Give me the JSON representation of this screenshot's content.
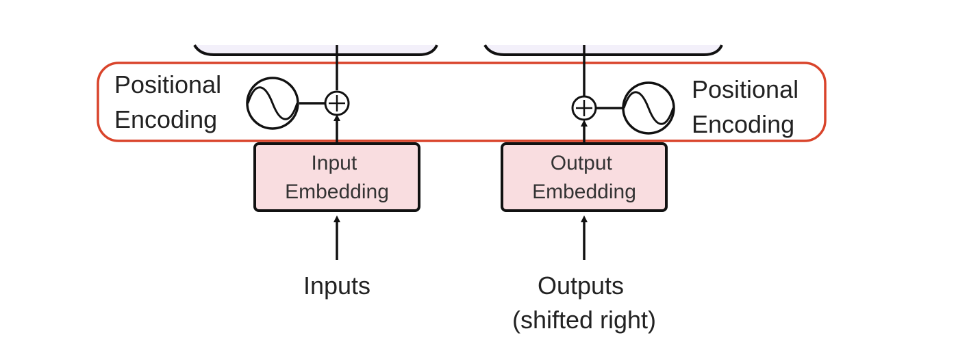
{
  "colors": {
    "highlight": "#d9442b",
    "embedding_fill": "#f9dde0",
    "top_block_fill": "#f3f0fa",
    "stroke": "#111111",
    "text": "#222222"
  },
  "left": {
    "positional_encoding": [
      "Positional",
      "Encoding"
    ],
    "embedding": [
      "Input",
      "Embedding"
    ],
    "input_label": [
      "Inputs"
    ],
    "sine_icon": "sine-wave-icon",
    "add_icon": "circle-plus-icon"
  },
  "right": {
    "positional_encoding": [
      "Positional",
      "Encoding"
    ],
    "embedding": [
      "Output",
      "Embedding"
    ],
    "input_label": [
      "Outputs",
      "(shifted right)"
    ],
    "sine_icon": "sine-wave-icon",
    "add_icon": "circle-plus-icon"
  }
}
